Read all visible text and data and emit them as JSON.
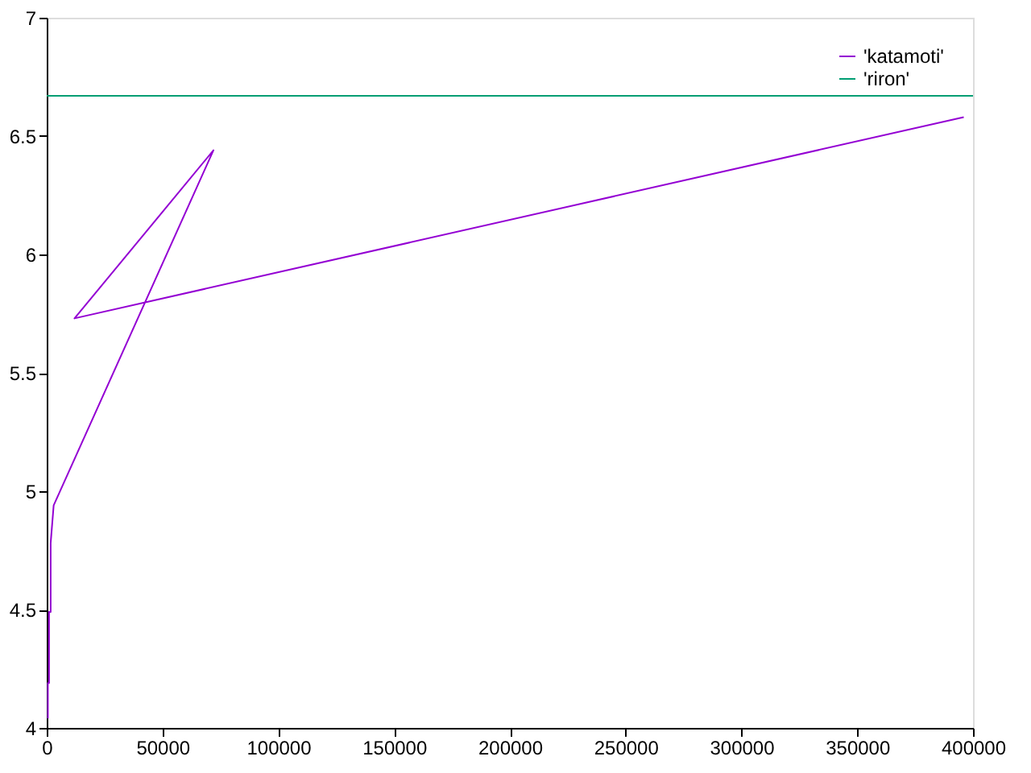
{
  "chart_data": {
    "type": "line",
    "series": [
      {
        "name": "'katamoti'",
        "color": "#9400d3",
        "x": [
          500,
          500,
          1000,
          1000,
          1700,
          1700,
          3000,
          72000,
          12000,
          396000
        ],
        "values": [
          4.04,
          4.19,
          4.19,
          4.49,
          4.49,
          4.78,
          4.94,
          6.44,
          5.73,
          6.58
        ]
      },
      {
        "name": "'riron'",
        "color": "#009e73",
        "x": [
          0,
          400000
        ],
        "values": [
          6.67,
          6.67
        ]
      }
    ],
    "xlim": [
      0,
      400000
    ],
    "xticks": [
      0,
      50000,
      100000,
      150000,
      200000,
      250000,
      300000,
      350000,
      400000
    ],
    "ylim": [
      4,
      7
    ],
    "yticks": [
      4,
      4.5,
      5,
      5.5,
      6,
      6.5,
      7
    ],
    "legend": "top right",
    "grid": false,
    "marker": "none",
    "line_style": "solid"
  }
}
